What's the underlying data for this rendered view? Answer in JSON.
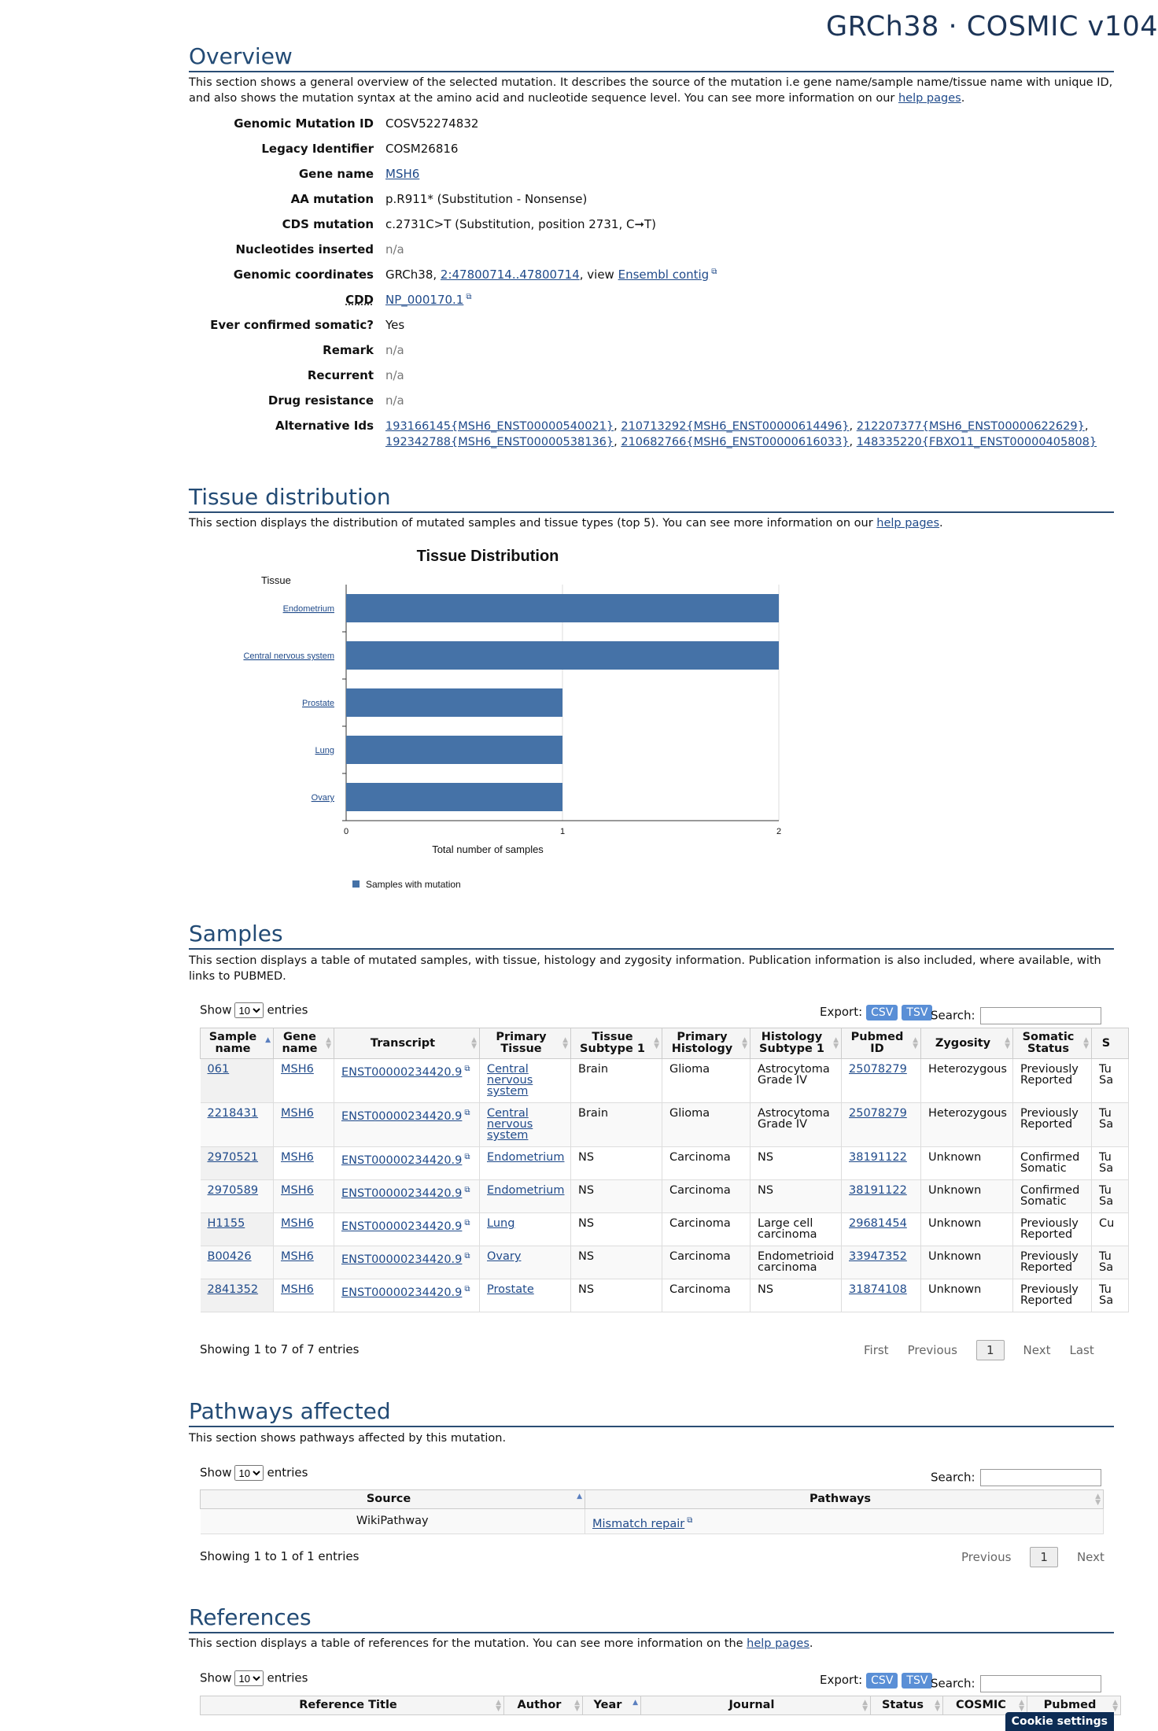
{
  "header": {
    "title": "GRCh38 · COSMIC v104"
  },
  "overview": {
    "heading": "Overview",
    "description_pre": "This section shows a general overview of the selected mutation. It describes the source of the mutation i.e gene name/sample name/tissue name with unique ID, and also shows the mutation syntax at the amino acid and nucleotide sequence level. You can see more information on our ",
    "help_link": "help pages",
    "description_post": ".",
    "fields": {
      "genomic_mutation_id": {
        "label": "Genomic Mutation ID",
        "value": "COSV52274832"
      },
      "legacy_identifier": {
        "label": "Legacy Identifier",
        "value": "COSM26816"
      },
      "gene_name": {
        "label": "Gene name",
        "value": "MSH6"
      },
      "aa_mutation": {
        "label": "AA mutation",
        "value": "p.R911* (Substitution - Nonsense)"
      },
      "cds_mutation": {
        "label": "CDS mutation",
        "value": "c.2731C>T (Substitution, position 2731, C➞T)"
      },
      "nucleotides_inserted": {
        "label": "Nucleotides inserted",
        "value": "n/a"
      },
      "genomic_coordinates": {
        "label": "Genomic coordinates",
        "prefix": "GRCh38, ",
        "coord_link": "2:47800714..47800714",
        "mid": ", view ",
        "ensembl_link": "Ensembl contig"
      },
      "cdd": {
        "label": "CDD",
        "value": "NP_000170.1"
      },
      "ever_confirmed_somatic": {
        "label": "Ever confirmed somatic?",
        "value": "Yes"
      },
      "remark": {
        "label": "Remark",
        "value": "n/a"
      },
      "recurrent": {
        "label": "Recurrent",
        "value": "n/a"
      },
      "drug_resistance": {
        "label": "Drug resistance",
        "value": "n/a"
      },
      "alternative_ids": {
        "label": "Alternative Ids",
        "items": [
          "193166145{MSH6_ENST00000540021}",
          "210713292{MSH6_ENST00000614496}",
          "212207377{MSH6_ENST00000622629}",
          "192342788{MSH6_ENST00000538136}",
          "210682766{MSH6_ENST00000616033}",
          "148335220{FBXO11_ENST00000405808}"
        ]
      }
    }
  },
  "tissue": {
    "heading": "Tissue distribution",
    "description_pre": "This section displays the distribution of mutated samples and tissue types (top 5). You can see more information on our ",
    "help_link": "help pages",
    "description_post": "."
  },
  "chart_data": {
    "type": "bar",
    "orientation": "horizontal",
    "title": "Tissue Distribution",
    "ylabel": "Tissue",
    "xlabel": "Total number of samples",
    "categories": [
      "Endometrium",
      "Central nervous system",
      "Prostate",
      "Lung",
      "Ovary"
    ],
    "series": [
      {
        "name": "Samples with mutation",
        "values": [
          2,
          2,
          1,
          1,
          1
        ]
      }
    ],
    "xlim": [
      0,
      2
    ],
    "xticks": [
      "0",
      "1",
      "2"
    ],
    "grid": true,
    "legend": "bottom-left",
    "bar_color": "#4572a7"
  },
  "samples": {
    "heading": "Samples",
    "description": "This section displays a table of mutated samples, with tissue, histology and zygosity information. Publication information is also included, where available, with links to PUBMED.",
    "show_label": "Show",
    "show_value": "10",
    "entries_label": "entries",
    "export_label": "Export:",
    "csv": "CSV",
    "tsv": "TSV",
    "search_label": "Search:",
    "columns": [
      "Sample name",
      "Gene name",
      "Transcript",
      "Primary Tissue",
      "Tissue Subtype 1",
      "Primary Histology",
      "Histology Subtype 1",
      "Pubmed ID",
      "Zygosity",
      "Somatic Status",
      "S"
    ],
    "rows": [
      [
        "061",
        "MSH6",
        "ENST00000234420.9",
        "Central nervous system",
        "Brain",
        "Glioma",
        "Astrocytoma Grade IV",
        "25078279",
        "Heterozygous",
        "Previously Reported",
        "Tu Sa"
      ],
      [
        "2218431",
        "MSH6",
        "ENST00000234420.9",
        "Central nervous system",
        "Brain",
        "Glioma",
        "Astrocytoma Grade IV",
        "25078279",
        "Heterozygous",
        "Previously Reported",
        "Tu Sa"
      ],
      [
        "2970521",
        "MSH6",
        "ENST00000234420.9",
        "Endometrium",
        "NS",
        "Carcinoma",
        "NS",
        "38191122",
        "Unknown",
        "Confirmed Somatic",
        "Tu Sa"
      ],
      [
        "2970589",
        "MSH6",
        "ENST00000234420.9",
        "Endometrium",
        "NS",
        "Carcinoma",
        "NS",
        "38191122",
        "Unknown",
        "Confirmed Somatic",
        "Tu Sa"
      ],
      [
        "H1155",
        "MSH6",
        "ENST00000234420.9",
        "Lung",
        "NS",
        "Carcinoma",
        "Large cell carcinoma",
        "29681454",
        "Unknown",
        "Previously Reported",
        "Cu"
      ],
      [
        "B00426",
        "MSH6",
        "ENST00000234420.9",
        "Ovary",
        "NS",
        "Carcinoma",
        "Endometrioid carcinoma",
        "33947352",
        "Unknown",
        "Previously Reported",
        "Tu Sa"
      ],
      [
        "2841352",
        "MSH6",
        "ENST00000234420.9",
        "Prostate",
        "NS",
        "Carcinoma",
        "NS",
        "31874108",
        "Unknown",
        "Previously Reported",
        "Tu Sa"
      ]
    ],
    "info": "Showing 1 to 7 of 7 entries",
    "pager": {
      "first": "First",
      "previous": "Previous",
      "current": "1",
      "next": "Next",
      "last": "Last"
    }
  },
  "pathways": {
    "heading": "Pathways affected",
    "description": "This section shows pathways affected by this mutation.",
    "show_label": "Show",
    "show_value": "10",
    "entries_label": "entries",
    "search_label": "Search:",
    "columns": [
      "Source",
      "Pathways"
    ],
    "rows": [
      [
        "WikiPathway",
        "Mismatch repair"
      ]
    ],
    "info": "Showing 1 to 1 of 1 entries",
    "pager": {
      "previous": "Previous",
      "current": "1",
      "next": "Next"
    }
  },
  "references": {
    "heading": "References",
    "description_pre": "This section displays a table of references for the mutation. You can see more information on the ",
    "help_link": "help pages",
    "description_post": ".",
    "show_label": "Show",
    "show_value": "10",
    "entries_label": "entries",
    "export_label": "Export:",
    "csv": "CSV",
    "tsv": "TSV",
    "search_label": "Search:",
    "columns": [
      "Reference Title",
      "Author",
      "Year",
      "Journal",
      "Status",
      "COSMIC",
      "Pubmed"
    ]
  },
  "cookie": "Cookie settings"
}
